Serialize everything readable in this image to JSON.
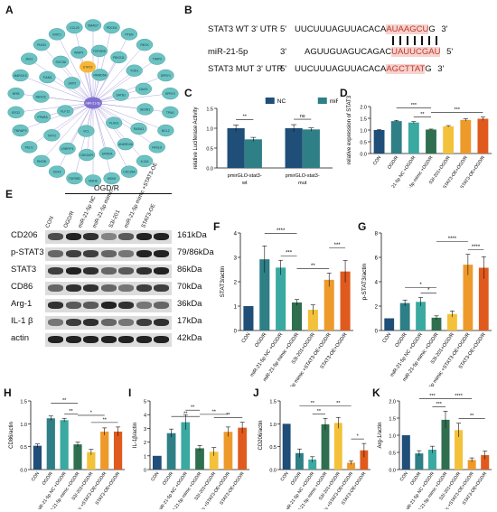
{
  "panels": {
    "A": "A",
    "B": "B",
    "C": "C",
    "D": "D",
    "E": "E",
    "F": "F",
    "G": "G",
    "H": "H",
    "I": "I",
    "J": "J",
    "K": "K"
  },
  "network": {
    "center": "miR-21-5p",
    "highlight": "STAT3",
    "nodes": [
      "SMAD7",
      "PDCD4",
      "PTEN",
      "RECK",
      "TIMP3",
      "SPRY1",
      "SPRY2",
      "TPM1",
      "BCL2",
      "FASLG",
      "IL12A",
      "CDC25A",
      "MSH2",
      "MSH6",
      "TGFBR2",
      "SOX2",
      "RHOB",
      "PELI1",
      "TNFAIP3",
      "BTG2",
      "NFIB",
      "MARCKS",
      "JAG1",
      "PIAS3",
      "KRIT1",
      "CCL20",
      "TOPORS",
      "FBXO11",
      "YOD1",
      "DAXX",
      "SESN1",
      "RASA1",
      "ANKRD46",
      "EPM2A",
      "CDK2AP1",
      "LRRFIP1",
      "NTF3",
      "PPARA",
      "MEF2C",
      "TIAM1",
      "SOCS6",
      "WWP1",
      "RMND5A",
      "SATB1",
      "PLAG1",
      "VCL",
      "KLF12",
      "SKP2"
    ]
  },
  "sequences": [
    {
      "label": "STAT3 WT 3' UTR",
      "prime5": "5'",
      "seq": "UUCUUUAGUUACACA",
      "highlight": "AUAAGCU",
      "tail": "G",
      "prime3": "3'"
    },
    {
      "label": "miR-21-5p",
      "prime5": "3'",
      "seq": "AGUUGUAGUCAGAC",
      "highlight": "UAUUCGAU",
      "tail": "",
      "prime3": "5'"
    },
    {
      "label": "STAT3 MUT 3' UTR",
      "prime5": "5'",
      "seq": "UUCUUUAGUUACACA",
      "highlight": "AGCTTAT",
      "tail": "G",
      "prime3": "3'"
    }
  ],
  "western_blot": {
    "header": "OGD/R",
    "lanes": [
      "CON",
      "OGD/R",
      "miR-21-5p NC",
      "miR-21-5p mimic",
      "S3I-201",
      "miR-21-5p mimic +STAT3-OE",
      "STAT3-OE"
    ],
    "proteins": [
      {
        "name": "CD206",
        "size": "161kDa"
      },
      {
        "name": "p-STAT3",
        "size": "79/86kDa"
      },
      {
        "name": "STAT3",
        "size": "86kDa"
      },
      {
        "name": "CD86",
        "size": "70kDa"
      },
      {
        "name": "Arg-1",
        "size": "36kDa"
      },
      {
        "name": "IL-1 β",
        "size": "17kDa"
      },
      {
        "name": "actin",
        "size": "42kDa"
      }
    ]
  },
  "colors": {
    "con": "#1f4e78",
    "ogdr": "#2e7f86",
    "nc": "#3aa9a1",
    "mimic": "#2f6f4f",
    "s3i": "#f3c13a",
    "mimic_oe": "#ee9a2b",
    "oe": "#e05a1d",
    "node": "#6cc2c2",
    "edge": "#9b8fd6",
    "highlight_node": "#f5b73c"
  },
  "chart_data": [
    {
      "id": "C",
      "type": "bar",
      "ylabel": "relative Luciferase Activity",
      "ylim": [
        0,
        1.5
      ],
      "yticks": [
        "0.0",
        "0.5",
        "1.0",
        "1.5"
      ],
      "categories": [
        "pmirGLO-stat3-wt",
        "pmirGLO-stat3-mut"
      ],
      "series": [
        {
          "name": "NC",
          "values": [
            1.0,
            1.0
          ],
          "errors": [
            0.08,
            0.09
          ]
        },
        {
          "name": "miR-21-5p",
          "values": [
            0.72,
            0.97
          ],
          "errors": [
            0.05,
            0.04
          ]
        }
      ],
      "annotations": [
        "**",
        "ns"
      ],
      "legend": "top-right"
    },
    {
      "id": "D",
      "type": "bar",
      "ylabel": "relative expression of STAT3",
      "ylim": [
        0,
        2.0
      ],
      "yticks": [
        "0.0",
        "0.5",
        "1.0",
        "1.5",
        "2.0"
      ],
      "categories": [
        "CON",
        "OGD/R",
        "miR-21-5p NC +OGD/R",
        "miR-21-5p mimic +OGD/R",
        "S3I-201+OGD/R",
        "miR-21-5p mimic +STAT3-OE+OGD/R",
        "STAT3-OE+OGD/R"
      ],
      "values": [
        1.0,
        1.38,
        1.32,
        1.02,
        1.16,
        1.43,
        1.48
      ],
      "errors": [
        0.02,
        0.03,
        0.04,
        0.02,
        0.03,
        0.05,
        0.07
      ],
      "annotations": [
        "***",
        "**",
        "***"
      ]
    },
    {
      "id": "F",
      "type": "bar",
      "ylabel": "STAT3/actin",
      "ylim": [
        0,
        4
      ],
      "yticks": [
        "0",
        "1",
        "2",
        "3",
        "4"
      ],
      "categories": [
        "CON",
        "OGD/R",
        "miR-21-5p NC +OGD/R",
        "miR-21-5p mimic +OGD/R",
        "S3I-201+OGD/R",
        "miR-21-5p mimic +STAT3-OE+OGD/R",
        "STAT3-OE+OGD/R"
      ],
      "values": [
        1.0,
        2.92,
        2.58,
        1.15,
        0.85,
        2.08,
        2.42
      ],
      "errors": [
        0,
        0.55,
        0.3,
        0.12,
        0.2,
        0.28,
        0.45
      ],
      "annotations": [
        "****",
        "***",
        "**",
        "***"
      ]
    },
    {
      "id": "G",
      "type": "bar",
      "ylabel": "p-STAT3/actin",
      "ylim": [
        0,
        8
      ],
      "yticks": [
        "0",
        "2",
        "4",
        "6",
        "8"
      ],
      "categories": [
        "CON",
        "OGD/R",
        "miR-21-5p NC +OGD/R",
        "miR-21-5p mimic +OGD/R",
        "S3I-201+OGD/R",
        "miR-21-5p mimic +STAT3-OE+OGD/R",
        "STAT3-OE+OGD/R"
      ],
      "values": [
        1.0,
        2.25,
        2.35,
        1.05,
        1.35,
        5.4,
        5.15
      ],
      "errors": [
        0,
        0.25,
        0.35,
        0.15,
        0.25,
        0.85,
        0.9
      ],
      "annotations": [
        "*",
        "*",
        "****",
        "****"
      ]
    },
    {
      "id": "H",
      "type": "bar",
      "ylabel": "CD86/actin",
      "ylim": [
        0,
        1.5
      ],
      "yticks": [
        "0.0",
        "0.5",
        "1.0",
        "1.5"
      ],
      "categories": [
        "CON",
        "OGD/R",
        "miR-21-5p NC +OGD/R",
        "miR-21-5p mimic +OGD/R",
        "S3I-201+OGD/R",
        "miR-21-5p mimic +STAT3-OE+OGD/R",
        "STAT3-OE+OGD/R"
      ],
      "values": [
        0.52,
        1.12,
        1.08,
        0.55,
        0.38,
        0.83,
        0.83
      ],
      "errors": [
        0.04,
        0.05,
        0.04,
        0.05,
        0.06,
        0.08,
        0.1
      ],
      "annotations": [
        "**",
        "**",
        "*",
        "**"
      ]
    },
    {
      "id": "I",
      "type": "bar",
      "ylabel": "IL-1β/actin",
      "ylim": [
        0,
        5
      ],
      "yticks": [
        "0",
        "1",
        "2",
        "3",
        "4",
        "5"
      ],
      "categories": [
        "CON",
        "OGD/R",
        "miR-21-5p NC +OGD/R",
        "miR-21-5p mimic +OGD/R",
        "S3I-201+OGD/R",
        "miR-21-5p mimic +STAT3-OE+OGD/R",
        "STAT3-OE+OGD/R"
      ],
      "values": [
        1.0,
        2.65,
        3.45,
        1.55,
        1.3,
        2.75,
        3.05
      ],
      "errors": [
        0,
        0.3,
        0.55,
        0.2,
        0.3,
        0.35,
        0.4
      ],
      "annotations": [
        "**",
        "**",
        "**",
        "**"
      ]
    },
    {
      "id": "J",
      "type": "bar",
      "ylabel": "CD206/actin",
      "ylim": [
        0,
        1.5
      ],
      "yticks": [
        "0.0",
        "0.5",
        "1.0",
        "1.5"
      ],
      "categories": [
        "CON",
        "OGD/R",
        "miR-21-5p NC +OGD/R",
        "miR-21-5p mimic +OGD/R",
        "S3I-201+OGD/R",
        "miR-21-5p mimic +STAT3-OE+OGD/R",
        "STAT3-OE+OGD/R"
      ],
      "values": [
        1.0,
        0.36,
        0.22,
        0.99,
        1.02,
        0.15,
        0.42
      ],
      "errors": [
        0,
        0.09,
        0.06,
        0.13,
        0.12,
        0.04,
        0.15
      ],
      "annotations": [
        "**",
        "**",
        "**",
        "*"
      ]
    },
    {
      "id": "K",
      "type": "bar",
      "ylabel": "Arg-1/actin",
      "ylim": [
        0,
        2.0
      ],
      "yticks": [
        "0.0",
        "0.5",
        "1.0",
        "1.5",
        "2.0"
      ],
      "categories": [
        "CON",
        "OGD/R",
        "miR-21-5p NC +OGD/R",
        "miR-21-5p mimic +OGD/R",
        "S3I-201+OGD/R",
        "miR-21-5p mimic +STAT3-OE+OGD/R",
        "STAT3-OE+OGD/R"
      ],
      "values": [
        1.0,
        0.47,
        0.58,
        1.45,
        1.15,
        0.28,
        0.42
      ],
      "errors": [
        0,
        0.08,
        0.1,
        0.25,
        0.2,
        0.06,
        0.12
      ],
      "annotations": [
        "***",
        "***",
        "****",
        "**"
      ]
    }
  ]
}
